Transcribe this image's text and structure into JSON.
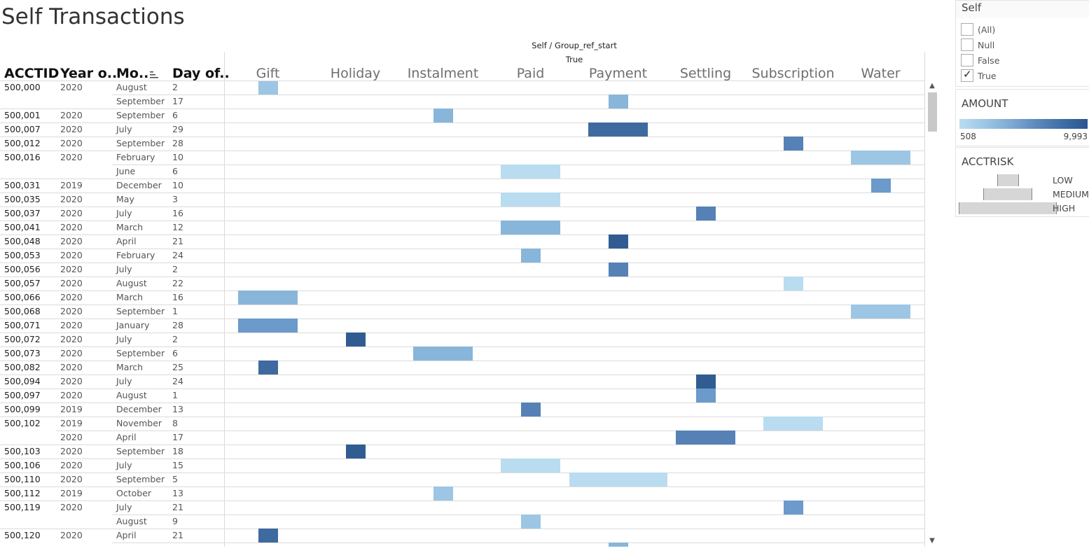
{
  "title": "Self Transactions",
  "column_group": {
    "title": "Self / Group_ref_start",
    "value": "True"
  },
  "headers": {
    "acctid": "ACCTID",
    "year": "Year o..",
    "month": "Mo..",
    "day": "Day of.."
  },
  "categories": [
    "Gift",
    "Holiday",
    "Instalment",
    "Paid",
    "Payment",
    "Settling",
    "Subscription",
    "Water"
  ],
  "colors": {
    "c1": "#b9dcf1",
    "c2": "#9cc6e4",
    "c3": "#88b6da",
    "c4": "#6b9acb",
    "c5": "#5581b7",
    "c6": "#3e6a9f",
    "c7": "#305c92"
  },
  "rows": [
    {
      "acctid": "500,000",
      "year": "2020",
      "month": "August",
      "day": "2",
      "cat": "Gift",
      "w": 0.33,
      "c": "c2"
    },
    {
      "acctid": "",
      "year": "",
      "month": "September",
      "day": "17",
      "cat": "Payment",
      "w": 0.33,
      "c": "c3"
    },
    {
      "acctid": "500,001",
      "year": "2020",
      "month": "September",
      "day": "6",
      "cat": "Instalment",
      "w": 0.33,
      "c": "c3"
    },
    {
      "acctid": "500,007",
      "year": "2020",
      "month": "July",
      "day": "29",
      "cat": "Payment",
      "w": 1.0,
      "c": "c6"
    },
    {
      "acctid": "500,012",
      "year": "2020",
      "month": "September",
      "day": "28",
      "cat": "Subscription",
      "w": 0.33,
      "c": "c5"
    },
    {
      "acctid": "500,016",
      "year": "2020",
      "month": "February",
      "day": "10",
      "cat": "Water",
      "w": 1.0,
      "c": "c2"
    },
    {
      "acctid": "",
      "year": "",
      "month": "June",
      "day": "6",
      "cat": "Paid",
      "w": 1.0,
      "c": "c1"
    },
    {
      "acctid": "500,031",
      "year": "2019",
      "month": "December",
      "day": "10",
      "cat": "Water",
      "w": 0.33,
      "c": "c4"
    },
    {
      "acctid": "500,035",
      "year": "2020",
      "month": "May",
      "day": "3",
      "cat": "Paid",
      "w": 1.0,
      "c": "c1"
    },
    {
      "acctid": "500,037",
      "year": "2020",
      "month": "July",
      "day": "16",
      "cat": "Settling",
      "w": 0.33,
      "c": "c5"
    },
    {
      "acctid": "500,041",
      "year": "2020",
      "month": "March",
      "day": "12",
      "cat": "Paid",
      "w": 1.0,
      "c": "c3"
    },
    {
      "acctid": "500,048",
      "year": "2020",
      "month": "April",
      "day": "21",
      "cat": "Payment",
      "w": 0.33,
      "c": "c7"
    },
    {
      "acctid": "500,053",
      "year": "2020",
      "month": "February",
      "day": "24",
      "cat": "Paid",
      "w": 0.33,
      "c": "c3"
    },
    {
      "acctid": "500,056",
      "year": "2020",
      "month": "July",
      "day": "2",
      "cat": "Payment",
      "w": 0.33,
      "c": "c5"
    },
    {
      "acctid": "500,057",
      "year": "2020",
      "month": "August",
      "day": "22",
      "cat": "Subscription",
      "w": 0.33,
      "c": "c1"
    },
    {
      "acctid": "500,066",
      "year": "2020",
      "month": "March",
      "day": "16",
      "cat": "Gift",
      "w": 1.0,
      "c": "c3"
    },
    {
      "acctid": "500,068",
      "year": "2020",
      "month": "September",
      "day": "1",
      "cat": "Water",
      "w": 1.0,
      "c": "c2"
    },
    {
      "acctid": "500,071",
      "year": "2020",
      "month": "January",
      "day": "28",
      "cat": "Gift",
      "w": 1.0,
      "c": "c4"
    },
    {
      "acctid": "500,072",
      "year": "2020",
      "month": "July",
      "day": "2",
      "cat": "Holiday",
      "w": 0.33,
      "c": "c7"
    },
    {
      "acctid": "500,073",
      "year": "2020",
      "month": "September",
      "day": "6",
      "cat": "Instalment",
      "w": 1.0,
      "c": "c3"
    },
    {
      "acctid": "500,082",
      "year": "2020",
      "month": "March",
      "day": "25",
      "cat": "Gift",
      "w": 0.33,
      "c": "c6"
    },
    {
      "acctid": "500,094",
      "year": "2020",
      "month": "July",
      "day": "24",
      "cat": "Settling",
      "w": 0.33,
      "c": "c7"
    },
    {
      "acctid": "500,097",
      "year": "2020",
      "month": "August",
      "day": "1",
      "cat": "Settling",
      "w": 0.33,
      "c": "c4"
    },
    {
      "acctid": "500,099",
      "year": "2019",
      "month": "December",
      "day": "13",
      "cat": "Paid",
      "w": 0.33,
      "c": "c5"
    },
    {
      "acctid": "500,102",
      "year": "2019",
      "month": "November",
      "day": "8",
      "cat": "Subscription",
      "w": 1.0,
      "c": "c1"
    },
    {
      "acctid": "",
      "year": "2020",
      "month": "April",
      "day": "17",
      "cat": "Settling",
      "w": 1.0,
      "c": "c5"
    },
    {
      "acctid": "500,103",
      "year": "2020",
      "month": "September",
      "day": "18",
      "cat": "Holiday",
      "w": 0.33,
      "c": "c7"
    },
    {
      "acctid": "500,106",
      "year": "2020",
      "month": "July",
      "day": "15",
      "cat": "Paid",
      "w": 1.0,
      "c": "c1"
    },
    {
      "acctid": "500,110",
      "year": "2020",
      "month": "September",
      "day": "5",
      "cat": "Payment",
      "w": 1.65,
      "c": "c1"
    },
    {
      "acctid": "500,112",
      "year": "2019",
      "month": "October",
      "day": "13",
      "cat": "Instalment",
      "w": 0.33,
      "c": "c2"
    },
    {
      "acctid": "500,119",
      "year": "2020",
      "month": "July",
      "day": "21",
      "cat": "Subscription",
      "w": 0.33,
      "c": "c4"
    },
    {
      "acctid": "",
      "year": "",
      "month": "August",
      "day": "9",
      "cat": "Paid",
      "w": 0.33,
      "c": "c2"
    },
    {
      "acctid": "500,120",
      "year": "2020",
      "month": "April",
      "day": "21",
      "cat": "Gift",
      "w": 0.33,
      "c": "c6"
    },
    {
      "acctid": "",
      "year": "",
      "month": "",
      "day": "",
      "cat": "Payment",
      "w": 0.33,
      "c": "c3"
    }
  ],
  "filter": {
    "title": "Self",
    "options": [
      {
        "label": "(All)",
        "checked": false
      },
      {
        "label": "Null",
        "checked": false
      },
      {
        "label": "False",
        "checked": false
      },
      {
        "label": "True",
        "checked": true
      }
    ]
  },
  "amount_legend": {
    "title": "AMOUNT",
    "min": "508",
    "max": "9,993"
  },
  "risk_legend": {
    "title": "ACCTRISK",
    "levels": [
      {
        "label": "LOW",
        "size": 0.22
      },
      {
        "label": "MEDIUM",
        "size": 0.5
      },
      {
        "label": "HIGH",
        "size": 1.0
      }
    ]
  }
}
